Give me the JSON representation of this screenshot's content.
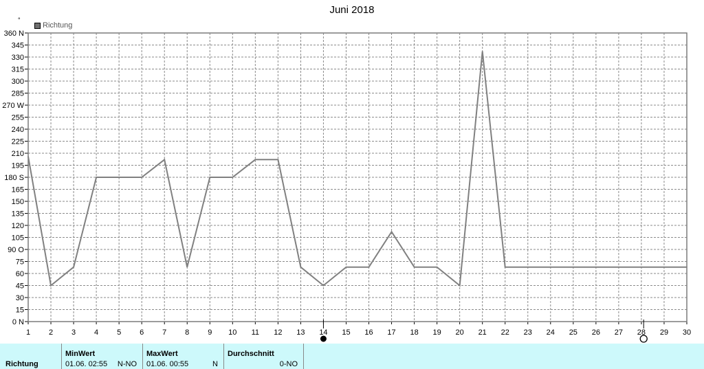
{
  "chart_data": {
    "type": "line",
    "title": "Juni 2018",
    "unit_mark": "°",
    "legend": "Richtung",
    "ylim": [
      0,
      360
    ],
    "y_ticks": [
      "0 N",
      "15",
      "30",
      "45",
      "60",
      "75",
      "90 O",
      "105",
      "120",
      "135",
      "150",
      "165",
      "180 S",
      "195",
      "210",
      "225",
      "240",
      "255",
      "270 W",
      "285",
      "300",
      "315",
      "330",
      "345",
      "360 N"
    ],
    "x_ticks": [
      "1",
      "2",
      "3",
      "4",
      "5",
      "6",
      "7",
      "8",
      "9",
      "10",
      "11",
      "12",
      "13",
      "14",
      "15",
      "16",
      "17",
      "18",
      "19",
      "20",
      "21",
      "22",
      "23",
      "24",
      "25",
      "26",
      "27",
      "28",
      "29",
      "30"
    ],
    "series": [
      {
        "name": "Richtung",
        "color": "#808080",
        "x": [
          1,
          2,
          3,
          4,
          5,
          6,
          7,
          8,
          9,
          10,
          11,
          12,
          13,
          14,
          15,
          16,
          17,
          18,
          19,
          20,
          21,
          22,
          23,
          24,
          25,
          26,
          27,
          28,
          29,
          30
        ],
        "values": [
          206,
          45,
          68,
          180,
          180,
          180,
          202,
          68,
          180,
          180,
          202,
          202,
          68,
          45,
          68,
          68,
          112,
          68,
          68,
          45,
          337,
          68,
          68,
          68,
          68,
          68,
          68,
          68,
          68,
          68
        ]
      }
    ],
    "grid": true,
    "markers": [
      {
        "x": 14,
        "type": "filled-circle"
      },
      {
        "x": 28.1,
        "type": "open-circle"
      }
    ]
  },
  "footer": {
    "row_label": "Richtung",
    "min": {
      "header": "MinWert",
      "date": "01.06.  02:55",
      "dir": "N-NO"
    },
    "max": {
      "header": "MaxWert",
      "date": "01.06.  00:55",
      "dir": "N"
    },
    "avg": {
      "header": "Durchschnitt",
      "dir": "0-NO"
    }
  }
}
